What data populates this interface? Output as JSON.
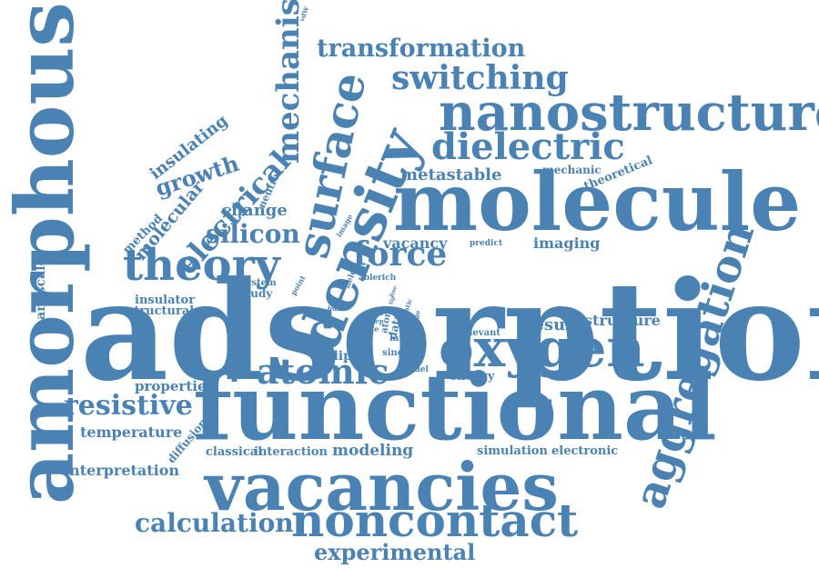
{
  "word_color": "#4a82b4",
  "words": [
    "adsorption",
    "functional",
    "molecule",
    "amorphous",
    "vacancies",
    "density",
    "nanostructure",
    "oxygen",
    "noncontact",
    "aggregation",
    "surface",
    "theory",
    "dielectric",
    "switching",
    "transformation",
    "mechanism",
    "atomic",
    "force",
    "resistive",
    "calculation",
    "experimental",
    "electrical",
    "silicon",
    "growth",
    "insulating",
    "molecular",
    "metastable",
    "change",
    "vacancy",
    "imaging",
    "result",
    "structure",
    "interpretation",
    "temperature",
    "properties",
    "modeling",
    "interaction",
    "classical",
    "simulation",
    "electronic",
    "nanoscale",
    "method",
    "neutral",
    "mechanic",
    "theoretical",
    "dipole",
    "energy",
    "insulator",
    "structural",
    "study",
    "system",
    "relevant",
    "diffusion",
    "predict",
    "image",
    "fields",
    "point",
    "able",
    "rich",
    "data",
    "atom",
    "site",
    "str",
    "larger",
    "single",
    "model",
    "scan",
    "bulk",
    "step",
    "static",
    "edge",
    "line",
    "tip",
    "vdW"
  ]
}
